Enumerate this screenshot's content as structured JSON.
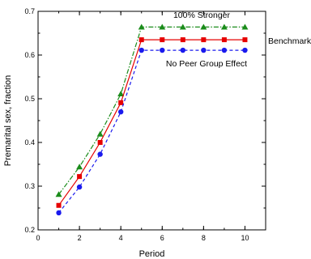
{
  "chart_data": {
    "type": "line",
    "title": "",
    "xlabel": "Period",
    "ylabel": "Premarital sex, fraction",
    "xlim": [
      0,
      11
    ],
    "ylim": [
      0.2,
      0.7
    ],
    "x_ticks": [
      0,
      2,
      4,
      6,
      8,
      10
    ],
    "y_ticks": [
      0.2,
      0.3,
      0.4,
      0.5,
      0.6,
      0.7
    ],
    "x_tick_labels": [
      "0",
      "2",
      "4",
      "6",
      "8",
      "10"
    ],
    "y_tick_labels": [
      "0.2",
      "0.3",
      "0.4",
      "0.5",
      "0.6",
      "0.7"
    ],
    "grid": false,
    "legend": "none",
    "x": [
      1,
      2,
      3,
      4,
      5,
      6,
      7,
      8,
      9,
      10
    ],
    "series": [
      {
        "name": "100% Stronger",
        "values": [
          0.281,
          0.344,
          0.419,
          0.511,
          0.664,
          0.664,
          0.664,
          0.664,
          0.664,
          0.664
        ],
        "color": "#1a8c1a",
        "marker": "triangle",
        "line_style": "dash-dot"
      },
      {
        "name": "Benchmark",
        "values": [
          0.256,
          0.322,
          0.4,
          0.491,
          0.635,
          0.635,
          0.635,
          0.635,
          0.635,
          0.635
        ],
        "color": "#e60000",
        "marker": "square",
        "line_style": "solid"
      },
      {
        "name": "No Peer Group Effect",
        "values": [
          0.239,
          0.298,
          0.373,
          0.47,
          0.611,
          0.611,
          0.611,
          0.611,
          0.611,
          0.611
        ],
        "color": "#1a1aee",
        "marker": "circle",
        "line_style": "dashed"
      }
    ]
  }
}
